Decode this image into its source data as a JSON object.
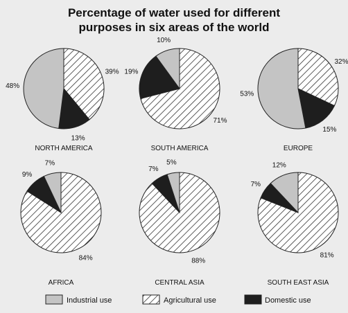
{
  "chart_data": {
    "type": "pie",
    "title": "Percentage of water used for different purposes in six areas of the world",
    "title_lines": [
      "Percentage of water used for different",
      "purposes in six areas of the world"
    ],
    "categories": [
      "Industrial use",
      "Agricultural use",
      "Domestic use"
    ],
    "legend": [
      {
        "name": "Industrial use",
        "fill": "light-gray"
      },
      {
        "name": "Agricultural use",
        "fill": "diagonal-hatch"
      },
      {
        "name": "Domestic use",
        "fill": "black"
      }
    ],
    "legend_placement": "bottom",
    "colors": {
      "Industrial use": "#c4c4c4",
      "Agricultural use": "#ffffff",
      "Domestic use": "#1e1e1e",
      "hatch_line": "#333333"
    },
    "charts": [
      {
        "region": "NORTH AMERICA",
        "values": {
          "Industrial use": 48,
          "Agricultural use": 39,
          "Domestic use": 13
        },
        "labels": {
          "Industrial use": "48%",
          "Agricultural use": "39%",
          "Domestic use": "13%"
        }
      },
      {
        "region": "SOUTH AMERICA",
        "values": {
          "Industrial use": 10,
          "Agricultural use": 71,
          "Domestic use": 19
        },
        "labels": {
          "Industrial use": "10%",
          "Agricultural use": "71%",
          "Domestic use": "19%"
        }
      },
      {
        "region": "EUROPE",
        "values": {
          "Industrial use": 53,
          "Agricultural use": 32,
          "Domestic use": 15
        },
        "labels": {
          "Industrial use": "53%",
          "Agricultural use": "32%",
          "Domestic use": "15%"
        }
      },
      {
        "region": "AFRICA",
        "values": {
          "Industrial use": 7,
          "Agricultural use": 84,
          "Domestic use": 9
        },
        "labels": {
          "Industrial use": "7%",
          "Agricultural use": "84%",
          "Domestic use": "9%"
        }
      },
      {
        "region": "CENTRAL ASIA",
        "values": {
          "Industrial use": 5,
          "Agricultural use": 88,
          "Domestic use": 7
        },
        "labels": {
          "Industrial use": "5%",
          "Agricultural use": "88%",
          "Domestic use": "7%"
        }
      },
      {
        "region": "SOUTH EAST ASIA",
        "values": {
          "Industrial use": 12,
          "Agricultural use": 81,
          "Domestic use": 7
        },
        "labels": {
          "Industrial use": "12%",
          "Agricultural use": "81%",
          "Domestic use": "7%"
        }
      }
    ]
  }
}
